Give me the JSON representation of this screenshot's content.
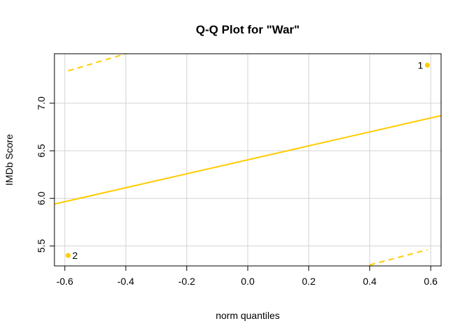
{
  "chart_data": {
    "type": "scatter",
    "title": "Q-Q Plot for \"War\"",
    "xlabel": "norm quantiles",
    "ylabel": "IMDb Score",
    "xlim": [
      -0.634,
      0.634
    ],
    "ylim": [
      5.29,
      7.52
    ],
    "xticks": [
      -0.6,
      -0.4,
      -0.2,
      0.0,
      0.2,
      0.4,
      0.6
    ],
    "xtick_labels": [
      "-0.6",
      "-0.4",
      "-0.2",
      "0.0",
      "0.2",
      "0.4",
      "0.6"
    ],
    "yticks": [
      5.5,
      6.0,
      6.5,
      7.0
    ],
    "ytick_labels": [
      "5.5",
      "6.0",
      "6.5",
      "7.0"
    ],
    "grid": true,
    "color": "#FFCC00",
    "points": [
      {
        "x": 0.589,
        "y": 7.4,
        "label": "1"
      },
      {
        "x": -0.589,
        "y": 5.4,
        "label": "2"
      }
    ],
    "reference_line": {
      "x": [
        -0.634,
        0.634
      ],
      "y": [
        5.94,
        6.87
      ]
    },
    "envelope_upper": {
      "x": [
        -0.589,
        -0.4
      ],
      "y": [
        7.34,
        7.52
      ]
    },
    "envelope_lower": {
      "x": [
        0.4,
        0.589
      ],
      "y": [
        5.3,
        5.46
      ]
    }
  }
}
